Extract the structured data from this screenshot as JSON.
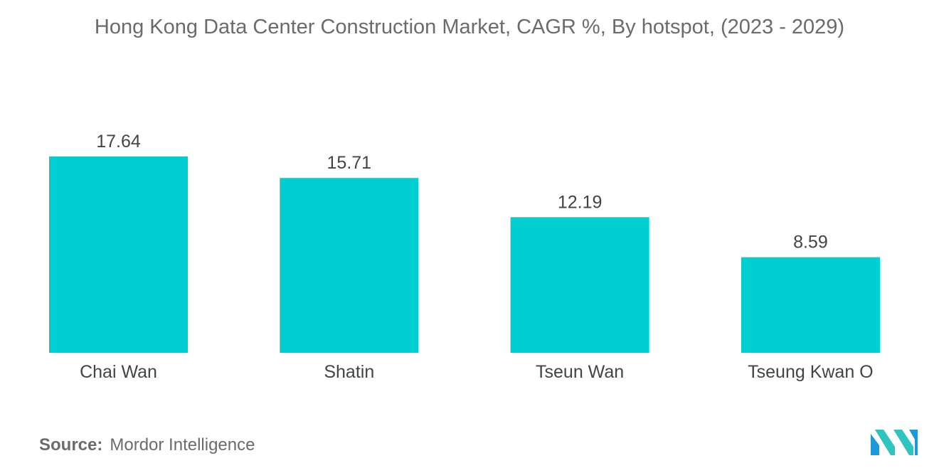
{
  "chart_data": {
    "type": "bar",
    "title": "Hong Kong Data Center Construction Market, CAGR %, By hotspot, (2023 - 2029)",
    "categories": [
      "Chai Wan",
      "Shatin",
      "Tseun Wan",
      "Tseung Kwan O"
    ],
    "values": [
      17.64,
      15.71,
      12.19,
      8.59
    ],
    "value_labels": [
      "17.64",
      "15.71",
      "12.19",
      "8.59"
    ],
    "xlabel": "",
    "ylabel": "",
    "ylim": [
      0,
      17.64
    ],
    "grid": false,
    "legend": "none",
    "bar_color": "#00CED1"
  },
  "source": {
    "label": "Source:",
    "text": "Mordor Intelligence"
  },
  "logo": {
    "icon": "mordor-intelligence-logo",
    "colors": [
      "#1a9bd7",
      "#2fc4c0"
    ]
  }
}
